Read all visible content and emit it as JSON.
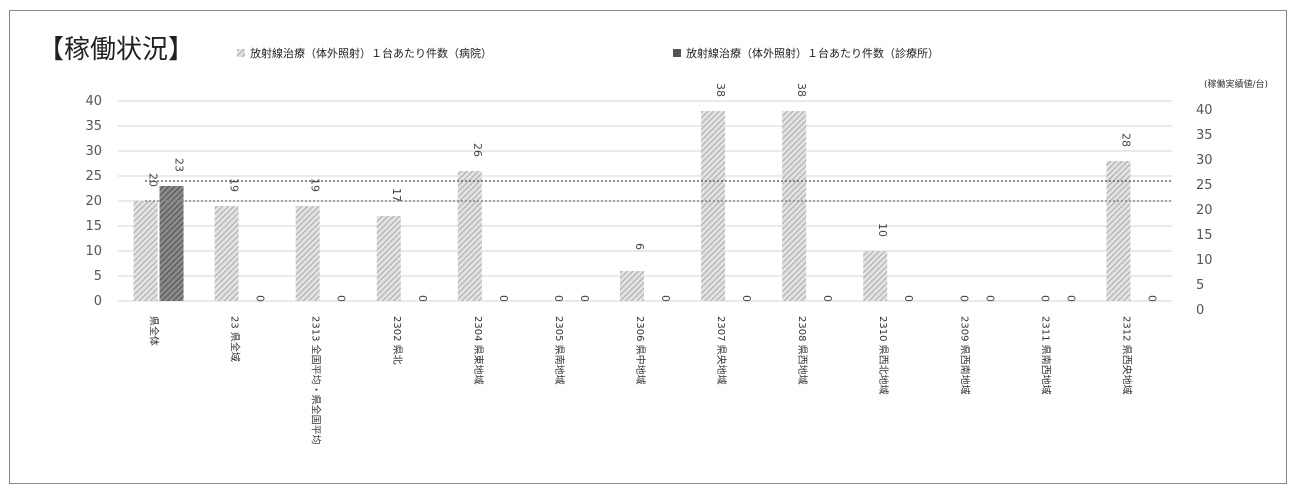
{
  "chart_data": {
    "type": "bar",
    "title": "【稼働状況】",
    "unit_label": "(稼働実績値/台)",
    "categories": [
      "県全体",
      "23 県全域",
      "2313 全国平均・県全国平均",
      "2302 県北",
      "2304 県東地域",
      "2305 県南地域",
      "2306 県中地域",
      "2307 県央地域",
      "2308 県西地域",
      "2310 県西北地域",
      "2309 県西南地域",
      "2311 県南西地域",
      "2312 県西央地域"
    ],
    "series": [
      {
        "name": "放射線治療（体外照射）１台あたり件数（病院）",
        "color": "#b8b8b8",
        "pattern": "hatch-light",
        "values": [
          20,
          19,
          19,
          17,
          26,
          0,
          6,
          38,
          38,
          10,
          0,
          0,
          28
        ]
      },
      {
        "name": "放射線治療（体外照射）１台あたり件数（診療所）",
        "color": "#707070",
        "pattern": "hatch-dark",
        "values": [
          23,
          0,
          0,
          0,
          0,
          0,
          0,
          0,
          0,
          0,
          0,
          0,
          0
        ]
      }
    ],
    "y_left": {
      "min": 0,
      "max": 40,
      "step": 5,
      "ticks": [
        0,
        5,
        10,
        15,
        20,
        25,
        30,
        35,
        40
      ]
    },
    "y_right": {
      "min": 0,
      "max": 40,
      "step": 5,
      "ticks": [
        0,
        5,
        10,
        15,
        20,
        25,
        30,
        35,
        40
      ]
    },
    "reference_lines": [
      {
        "value": 24,
        "color": "#666666",
        "style": "dotted"
      },
      {
        "value": 20,
        "color": "#888888",
        "style": "dotted"
      }
    ],
    "grid": true,
    "legend_position": "top"
  }
}
